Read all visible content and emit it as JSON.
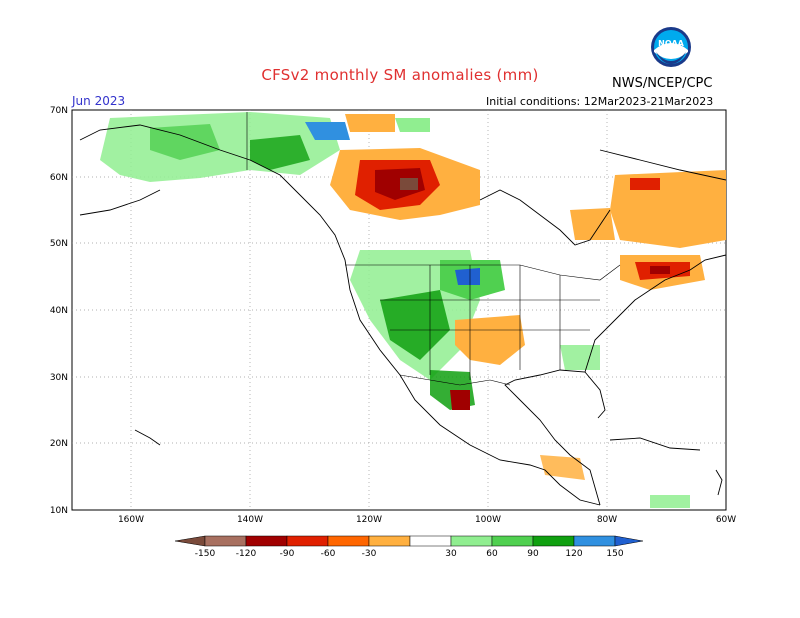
{
  "header": {
    "title": "CFSv2 monthly SM anomalies (mm)",
    "agency": "NWS/NCEP/CPC",
    "month": "Jun 2023",
    "initial_conditions": "Initial conditions: 12Mar2023-21Mar2023"
  },
  "logo": {
    "icon": "noaa-logo-icon",
    "text": "NOAA"
  },
  "axes": {
    "lat_labels": [
      "70N",
      "60N",
      "50N",
      "40N",
      "30N",
      "20N",
      "10N"
    ],
    "lon_labels": [
      "160W",
      "140W",
      "120W",
      "100W",
      "80W",
      "60W"
    ]
  },
  "legend": {
    "labels": [
      "-150",
      "-120",
      "-90",
      "-60",
      "-30",
      "30",
      "60",
      "90",
      "120",
      "150"
    ],
    "colors": [
      "#7a4a3a",
      "#a87060",
      "#a00000",
      "#e02000",
      "#ff6600",
      "#ffb040",
      "#ffffff",
      "#90ee90",
      "#50d050",
      "#10a010",
      "#3090e0",
      "#2060d0"
    ]
  },
  "colors": {
    "title": "#e03030",
    "month": "#3333cc",
    "wet": "#10a010",
    "dry": "#ffb040"
  }
}
